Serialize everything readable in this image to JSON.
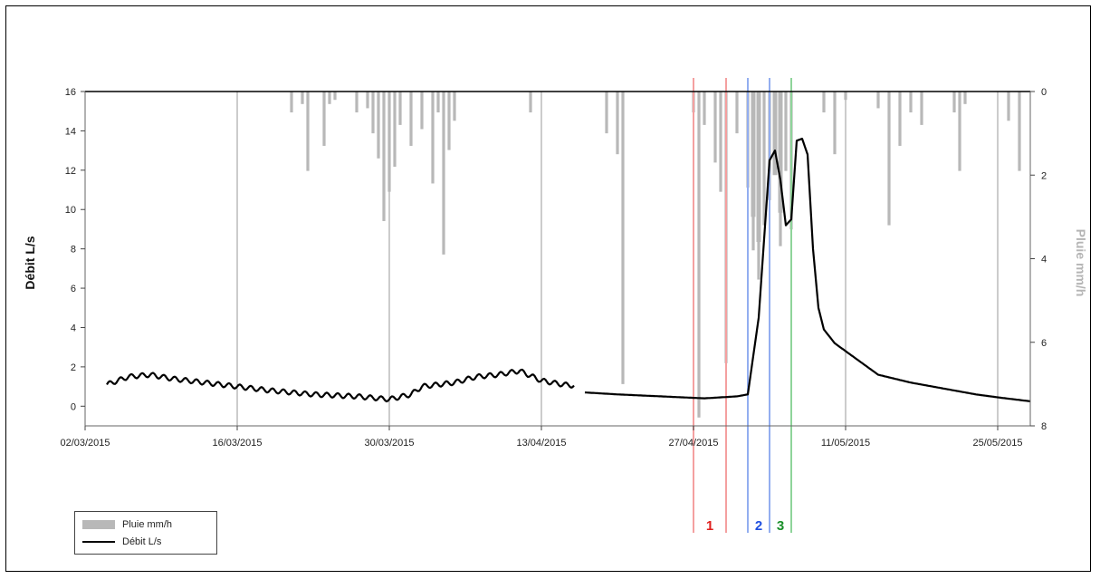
{
  "chart_data": {
    "type": "line",
    "x_type": "date",
    "x_ticks": [
      "02/03/2015",
      "16/03/2015",
      "30/03/2015",
      "13/04/2015",
      "27/04/2015",
      "11/05/2015",
      "25/05/2015"
    ],
    "x_range": [
      "2015-03-02",
      "2015-05-28"
    ],
    "y_left": {
      "label": "Débit L/s",
      "range": [
        -1,
        16
      ],
      "ticks": [
        "0",
        "2",
        "4",
        "6",
        "8",
        "10",
        "12",
        "14",
        "16"
      ]
    },
    "y_right": {
      "label": "Pluie mm/h",
      "range": [
        0,
        8
      ],
      "inverted": true,
      "ticks": [
        "0",
        "2",
        "4",
        "6",
        "8"
      ]
    },
    "series": [
      {
        "name": "Débit L/s",
        "kind": "line",
        "color": "#000000",
        "axis": "left",
        "baseline": [
          [
            "2015-03-04",
            1.1
          ],
          [
            "2015-03-06",
            1.5
          ],
          [
            "2015-03-08",
            1.6
          ],
          [
            "2015-03-10",
            1.4
          ],
          [
            "2015-03-13",
            1.2
          ],
          [
            "2015-03-16",
            1.0
          ],
          [
            "2015-03-19",
            0.8
          ],
          [
            "2015-03-23",
            0.6
          ],
          [
            "2015-03-27",
            0.5
          ],
          [
            "2015-03-30",
            0.35
          ],
          [
            "2015-04-01",
            0.6
          ],
          [
            "2015-04-02",
            1.0
          ],
          [
            "2015-04-05",
            1.2
          ],
          [
            "2015-04-07",
            1.5
          ],
          [
            "2015-04-09",
            1.6
          ],
          [
            "2015-04-11",
            1.8
          ],
          [
            "2015-04-13",
            1.3
          ],
          [
            "2015-04-15",
            1.1
          ],
          [
            "2015-04-16",
            1.05
          ]
        ],
        "baseline_b": [
          [
            "2015-04-17",
            0.7
          ],
          [
            "2015-04-20",
            0.6
          ],
          [
            "2015-04-24",
            0.5
          ],
          [
            "2015-04-28",
            0.4
          ],
          [
            "2015-05-01",
            0.5
          ],
          [
            "2015-05-02",
            0.6
          ],
          [
            "2015-05-03",
            4.5
          ],
          [
            "2015-05-04",
            12.5
          ],
          [
            "2015-05-04T12",
            13.0
          ],
          [
            "2015-05-05",
            11.5
          ],
          [
            "2015-05-05T12",
            9.2
          ],
          [
            "2015-05-06",
            9.5
          ],
          [
            "2015-05-06T12",
            13.5
          ],
          [
            "2015-05-07",
            13.6
          ],
          [
            "2015-05-07T12",
            12.8
          ],
          [
            "2015-05-08",
            8.0
          ],
          [
            "2015-05-08T12",
            5.0
          ],
          [
            "2015-05-09",
            3.9
          ],
          [
            "2015-05-10",
            3.2
          ],
          [
            "2015-05-12",
            2.4
          ],
          [
            "2015-05-14",
            1.6
          ],
          [
            "2015-05-17",
            1.2
          ],
          [
            "2015-05-20",
            0.9
          ],
          [
            "2015-05-23",
            0.6
          ],
          [
            "2015-05-25",
            0.45
          ],
          [
            "2015-05-28",
            0.25
          ]
        ]
      },
      {
        "name": "Pluie mm/h",
        "kind": "bar",
        "color": "#b8b8b8",
        "axis": "right",
        "points": [
          [
            "2015-03-21",
            0.5
          ],
          [
            "2015-03-22",
            0.3
          ],
          [
            "2015-03-22T12",
            1.9
          ],
          [
            "2015-03-24",
            1.3
          ],
          [
            "2015-03-24T12",
            0.3
          ],
          [
            "2015-03-25",
            0.2
          ],
          [
            "2015-03-27",
            0.5
          ],
          [
            "2015-03-28",
            0.4
          ],
          [
            "2015-03-28T12",
            1.0
          ],
          [
            "2015-03-29",
            1.6
          ],
          [
            "2015-03-29T12",
            3.1
          ],
          [
            "2015-03-30",
            2.4
          ],
          [
            "2015-03-30T12",
            1.8
          ],
          [
            "2015-03-31",
            0.8
          ],
          [
            "2015-04-01",
            1.3
          ],
          [
            "2015-04-02",
            0.9
          ],
          [
            "2015-04-03",
            2.2
          ],
          [
            "2015-04-03T12",
            0.5
          ],
          [
            "2015-04-04",
            3.9
          ],
          [
            "2015-04-04T12",
            1.4
          ],
          [
            "2015-04-05",
            0.7
          ],
          [
            "2015-04-12",
            0.5
          ],
          [
            "2015-04-19",
            1.0
          ],
          [
            "2015-04-20",
            1.5
          ],
          [
            "2015-04-20T12",
            7.0
          ],
          [
            "2015-04-27",
            0.5
          ],
          [
            "2015-04-27T12",
            7.8
          ],
          [
            "2015-04-28",
            0.8
          ],
          [
            "2015-04-29",
            1.7
          ],
          [
            "2015-04-29T12",
            2.4
          ],
          [
            "2015-04-30",
            6.5
          ],
          [
            "2015-05-01",
            1.0
          ],
          [
            "2015-05-02",
            2.3
          ],
          [
            "2015-05-02T12",
            3.8
          ],
          [
            "2015-05-03",
            4.5
          ],
          [
            "2015-05-03T12",
            3.2
          ],
          [
            "2015-05-04",
            2.6
          ],
          [
            "2015-05-05",
            3.7
          ],
          [
            "2015-05-05T12",
            1.9
          ],
          [
            "2015-05-06",
            3.3
          ],
          [
            "2015-05-09",
            0.5
          ],
          [
            "2015-05-10",
            1.5
          ],
          [
            "2015-05-11",
            0.2
          ],
          [
            "2015-05-14",
            0.4
          ],
          [
            "2015-05-15",
            3.2
          ],
          [
            "2015-05-16",
            1.3
          ],
          [
            "2015-05-17",
            0.5
          ],
          [
            "2015-05-18",
            0.8
          ],
          [
            "2015-05-21",
            0.5
          ],
          [
            "2015-05-21T12",
            1.9
          ],
          [
            "2015-05-22",
            0.3
          ],
          [
            "2015-05-26",
            0.7
          ],
          [
            "2015-05-27",
            1.9
          ]
        ]
      }
    ],
    "vertical_gridlines_dates": [
      "2015-03-02",
      "2015-03-16",
      "2015-03-30",
      "2015-04-13",
      "2015-04-27",
      "2015-05-11",
      "2015-05-25"
    ],
    "event_markers": [
      {
        "label": "1",
        "color": "#e0201e",
        "line_color": "#f4a0a0",
        "dates": [
          "2015-04-27",
          "2015-04-30"
        ]
      },
      {
        "label": "2",
        "color": "#1f4fe0",
        "line_color": "#93aef0",
        "dates": [
          "2015-05-02",
          "2015-05-04"
        ]
      },
      {
        "label": "3",
        "color": "#1a8f2a",
        "line_color": "#8fd49a",
        "dates": [
          "2015-05-06"
        ]
      }
    ],
    "legend": {
      "position": "bottom-left",
      "entries": [
        "Pluie mm/h",
        "Débit L/s"
      ]
    }
  }
}
